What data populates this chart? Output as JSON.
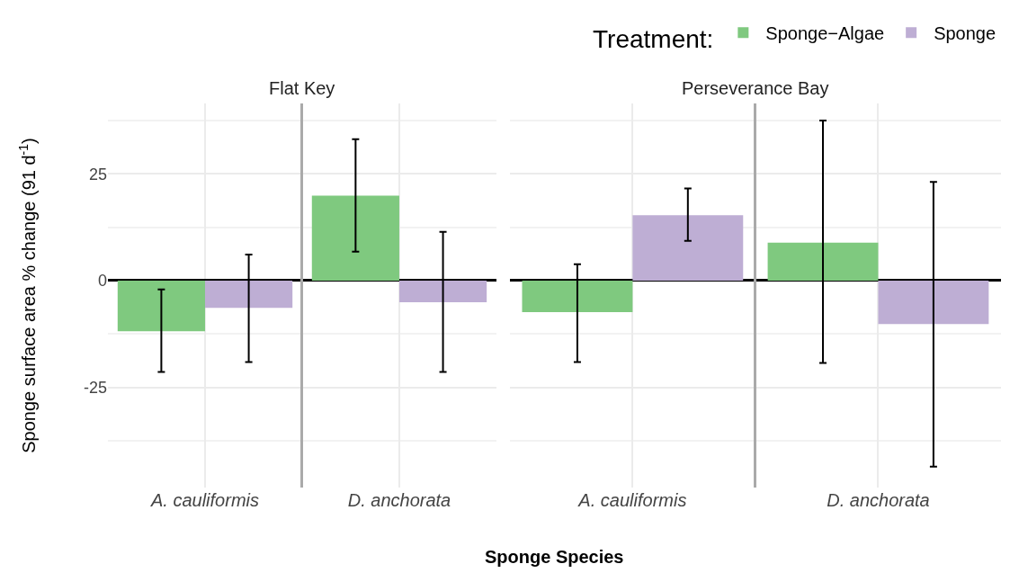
{
  "chart_data": [
    {
      "type": "bar",
      "title": "Flat Key",
      "xlabel": "Sponge Species",
      "ylabel": "Sponge surface area % change (91 d$^{-1}$)",
      "legend_title": "Treatment:",
      "legend": "top right",
      "grid": true,
      "categories": [
        "A. cauliformis",
        "D. anchorata"
      ],
      "ylim": [
        -48.5,
        41.5
      ],
      "yticks": [
        -25,
        0,
        25
      ],
      "series": [
        {
          "name": "Sponge−Algae",
          "color": "#7fc97f",
          "values": [
            -11.9,
            19.9
          ],
          "errors": [
            [
              -21.4,
              -2.1
            ],
            [
              6.8,
              33.1
            ]
          ]
        },
        {
          "name": "Sponge",
          "color": "#beaed4",
          "values": [
            -6.4,
            -5.1
          ],
          "errors": [
            [
              -19.1,
              6.1
            ],
            [
              -21.4,
              11.4
            ]
          ]
        }
      ]
    },
    {
      "type": "bar",
      "title": "Perseverance Bay",
      "grid": true,
      "tick_labels": "x",
      "categories": [
        "A. cauliformis",
        "D. anchorata"
      ],
      "ylim": [
        -48.5,
        41.5
      ],
      "yticks": [
        -25,
        0,
        25
      ],
      "series": [
        {
          "color": "#7fc97f",
          "values": [
            -7.4,
            8.9
          ],
          "errors": [
            [
              -19.1,
              3.8
            ],
            [
              -19.3,
              37.5
            ]
          ]
        },
        {
          "color": "#beaed4",
          "values": [
            15.3,
            -10.2
          ],
          "errors": [
            [
              9.3,
              21.6
            ],
            [
              -43.6,
              23.1
            ]
          ]
        }
      ]
    }
  ]
}
